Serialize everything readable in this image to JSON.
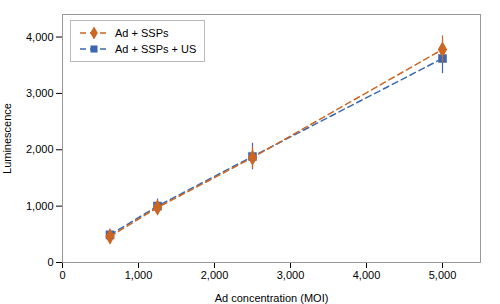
{
  "chart_data": {
    "type": "line",
    "xlabel": "Ad concentration (MOI)",
    "ylabel": "Luminescence",
    "x": [
      625,
      1250,
      2500,
      5000
    ],
    "series": [
      {
        "name": "Ad + SSPs",
        "color": "#CC6622",
        "marker": "diamond",
        "line_style": "dashed",
        "values": [
          460,
          975,
          1860,
          3780
        ],
        "yerr": [
          75,
          115,
          195,
          240
        ]
      },
      {
        "name": "Ad + SSPs + US",
        "color": "#3A68B0",
        "marker": "square",
        "line_style": "dashed",
        "values": [
          490,
          1000,
          1880,
          3620
        ],
        "yerr": [
          100,
          125,
          235,
          270
        ]
      }
    ],
    "xlim": [
      0,
      5500
    ],
    "ylim": [
      0,
      4400
    ],
    "xticks": [
      0,
      {
        "value": 1000,
        "label": "1,000"
      },
      {
        "value": 2000,
        "label": "2,000"
      },
      {
        "value": 3000,
        "label": "3,000"
      },
      {
        "value": 4000,
        "label": "4,000"
      },
      {
        "value": 5000,
        "label": "5,000"
      }
    ],
    "yticks": [
      0,
      {
        "value": 1000,
        "label": "1,000"
      },
      {
        "value": 2000,
        "label": "2,000"
      },
      {
        "value": 3000,
        "label": "3,000"
      },
      {
        "value": 4000,
        "label": "4,000"
      }
    ],
    "grid": false,
    "legend": "upper left"
  }
}
